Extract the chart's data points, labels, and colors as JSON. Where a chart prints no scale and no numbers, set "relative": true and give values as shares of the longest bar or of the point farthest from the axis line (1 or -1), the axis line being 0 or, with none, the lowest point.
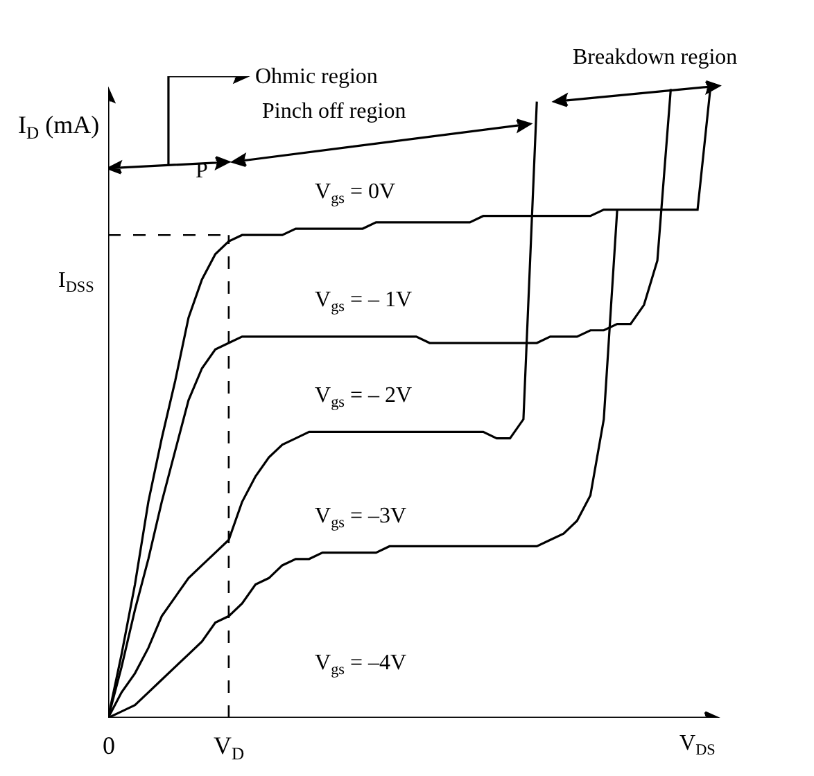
{
  "chart_data": {
    "type": "line",
    "relative": true,
    "legend": false,
    "marker": "none",
    "line_style": "solid",
    "xlabel": "V$_{DS}$",
    "ylabel": "I$_{D}$ (mA)",
    "categories": [
      "0",
      null,
      null,
      null,
      null,
      null,
      null,
      null,
      null,
      "V$_{D}$",
      null,
      null,
      null,
      null,
      null,
      null,
      null,
      null,
      null,
      null,
      null,
      null,
      null,
      null,
      null,
      null,
      null,
      null,
      null,
      null,
      null,
      null,
      null,
      null,
      null,
      null,
      null,
      null,
      null,
      null,
      null,
      null,
      null,
      null,
      null,
      null
    ],
    "series": [
      {
        "name": "V$_{gs}$ = 0V",
        "color": "#000000",
        "values": [
          0,
          0.1,
          0.21,
          0.34,
          0.44,
          0.53,
          0.63,
          0.69,
          0.73,
          0.75,
          0.76,
          0.76,
          0.76,
          0.76,
          0.77,
          0.77,
          0.77,
          0.77,
          0.77,
          0.77,
          0.78,
          0.78,
          0.78,
          0.78,
          0.78,
          0.78,
          0.78,
          0.78,
          0.79,
          0.79,
          0.79,
          0.79,
          0.79,
          0.79,
          0.79,
          0.79,
          0.79,
          0.8,
          0.8,
          0.8,
          0.8,
          0.8,
          0.8,
          0.8,
          0.8,
          1.0
        ]
      },
      {
        "name": "V$_{gs}$ = – 1V",
        "color": "#000000",
        "values": [
          0,
          0.08,
          0.17,
          0.25,
          0.34,
          0.42,
          0.5,
          0.55,
          0.58,
          0.59,
          0.6,
          0.6,
          0.6,
          0.6,
          0.6,
          0.6,
          0.6,
          0.6,
          0.6,
          0.6,
          0.6,
          0.6,
          0.6,
          0.6,
          0.59,
          0.59,
          0.59,
          0.59,
          0.59,
          0.59,
          0.59,
          0.59,
          0.59,
          0.6,
          0.6,
          0.6,
          0.61,
          0.61,
          0.62,
          0.62,
          0.65,
          0.72,
          0.99,
          null,
          null,
          null
        ]
      },
      {
        "name": "V$_{gs}$ = – 2V",
        "color": "#000000",
        "values": [
          0,
          0.04,
          0.07,
          0.11,
          0.16,
          0.19,
          0.22,
          0.24,
          0.26,
          0.28,
          0.34,
          0.38,
          0.41,
          0.43,
          0.44,
          0.45,
          0.45,
          0.45,
          0.45,
          0.45,
          0.45,
          0.45,
          0.45,
          0.45,
          0.45,
          0.45,
          0.45,
          0.45,
          0.45,
          0.44,
          0.44,
          0.47,
          0.97,
          null,
          null,
          null,
          null,
          null,
          null,
          null,
          null,
          null,
          null,
          null,
          null,
          null
        ]
      },
      {
        "name": "V$_{gs}$ = –3V",
        "color": "#000000",
        "values": [
          0,
          0.01,
          0.02,
          0.04,
          0.06,
          0.08,
          0.1,
          0.12,
          0.15,
          0.16,
          0.18,
          0.21,
          0.22,
          0.24,
          0.25,
          0.25,
          0.26,
          0.26,
          0.26,
          0.26,
          0.26,
          0.27,
          0.27,
          0.27,
          0.27,
          0.27,
          0.27,
          0.27,
          0.27,
          0.27,
          0.27,
          0.27,
          0.27,
          0.28,
          0.29,
          0.31,
          0.35,
          0.47,
          0.8,
          null,
          null,
          null,
          null,
          null,
          null,
          null
        ]
      }
    ],
    "ref_lines": [
      {
        "axis": "y",
        "value": 0.76,
        "label": "I$_{DSS}$",
        "line_style": "dashed"
      },
      {
        "axis": "x",
        "value": "V$_{D}$",
        "line_style": "dashed"
      }
    ],
    "annotations": [
      "P",
      "Ohmic region",
      "Pinch off region",
      "Breakdown region",
      "V$_{gs}$ = –4V"
    ]
  }
}
